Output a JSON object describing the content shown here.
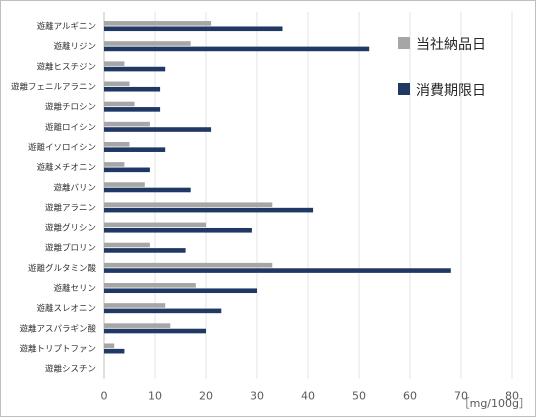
{
  "chart_data": {
    "type": "bar",
    "orientation": "horizontal",
    "categories": [
      "遊離アルギニン",
      "遊離リジン",
      "遊離ヒスチジン",
      "遊離フェニルアラニン",
      "遊離チロシン",
      "遊離ロイシン",
      "遊離イソロイシン",
      "遊離メチオニン",
      "遊離バリン",
      "遊離アラニン",
      "遊離グリシン",
      "遊離プロリン",
      "遊離グルタミン酸",
      "遊離セリン",
      "遊離スレオニン",
      "遊離アスパラギン酸",
      "遊離トリプトファン",
      "遊離シスチン"
    ],
    "series": [
      {
        "name": "当社納品日",
        "color": "#a6a6a6",
        "values": [
          21,
          17,
          4,
          5,
          6,
          9,
          5,
          4,
          8,
          33,
          20,
          9,
          33,
          18,
          12,
          13,
          2,
          0
        ]
      },
      {
        "name": "消費期限日",
        "color": "#1f3864",
        "values": [
          35,
          52,
          12,
          11,
          11,
          21,
          12,
          9,
          17,
          41,
          29,
          16,
          68,
          30,
          23,
          20,
          4,
          0
        ]
      }
    ],
    "xlim": [
      0,
      80
    ],
    "xticks": [
      "0",
      "10",
      "20",
      "30",
      "40",
      "50",
      "60",
      "70",
      "80"
    ],
    "xlabel": "［mg/100g］",
    "grid": true,
    "legend_position": "right"
  }
}
